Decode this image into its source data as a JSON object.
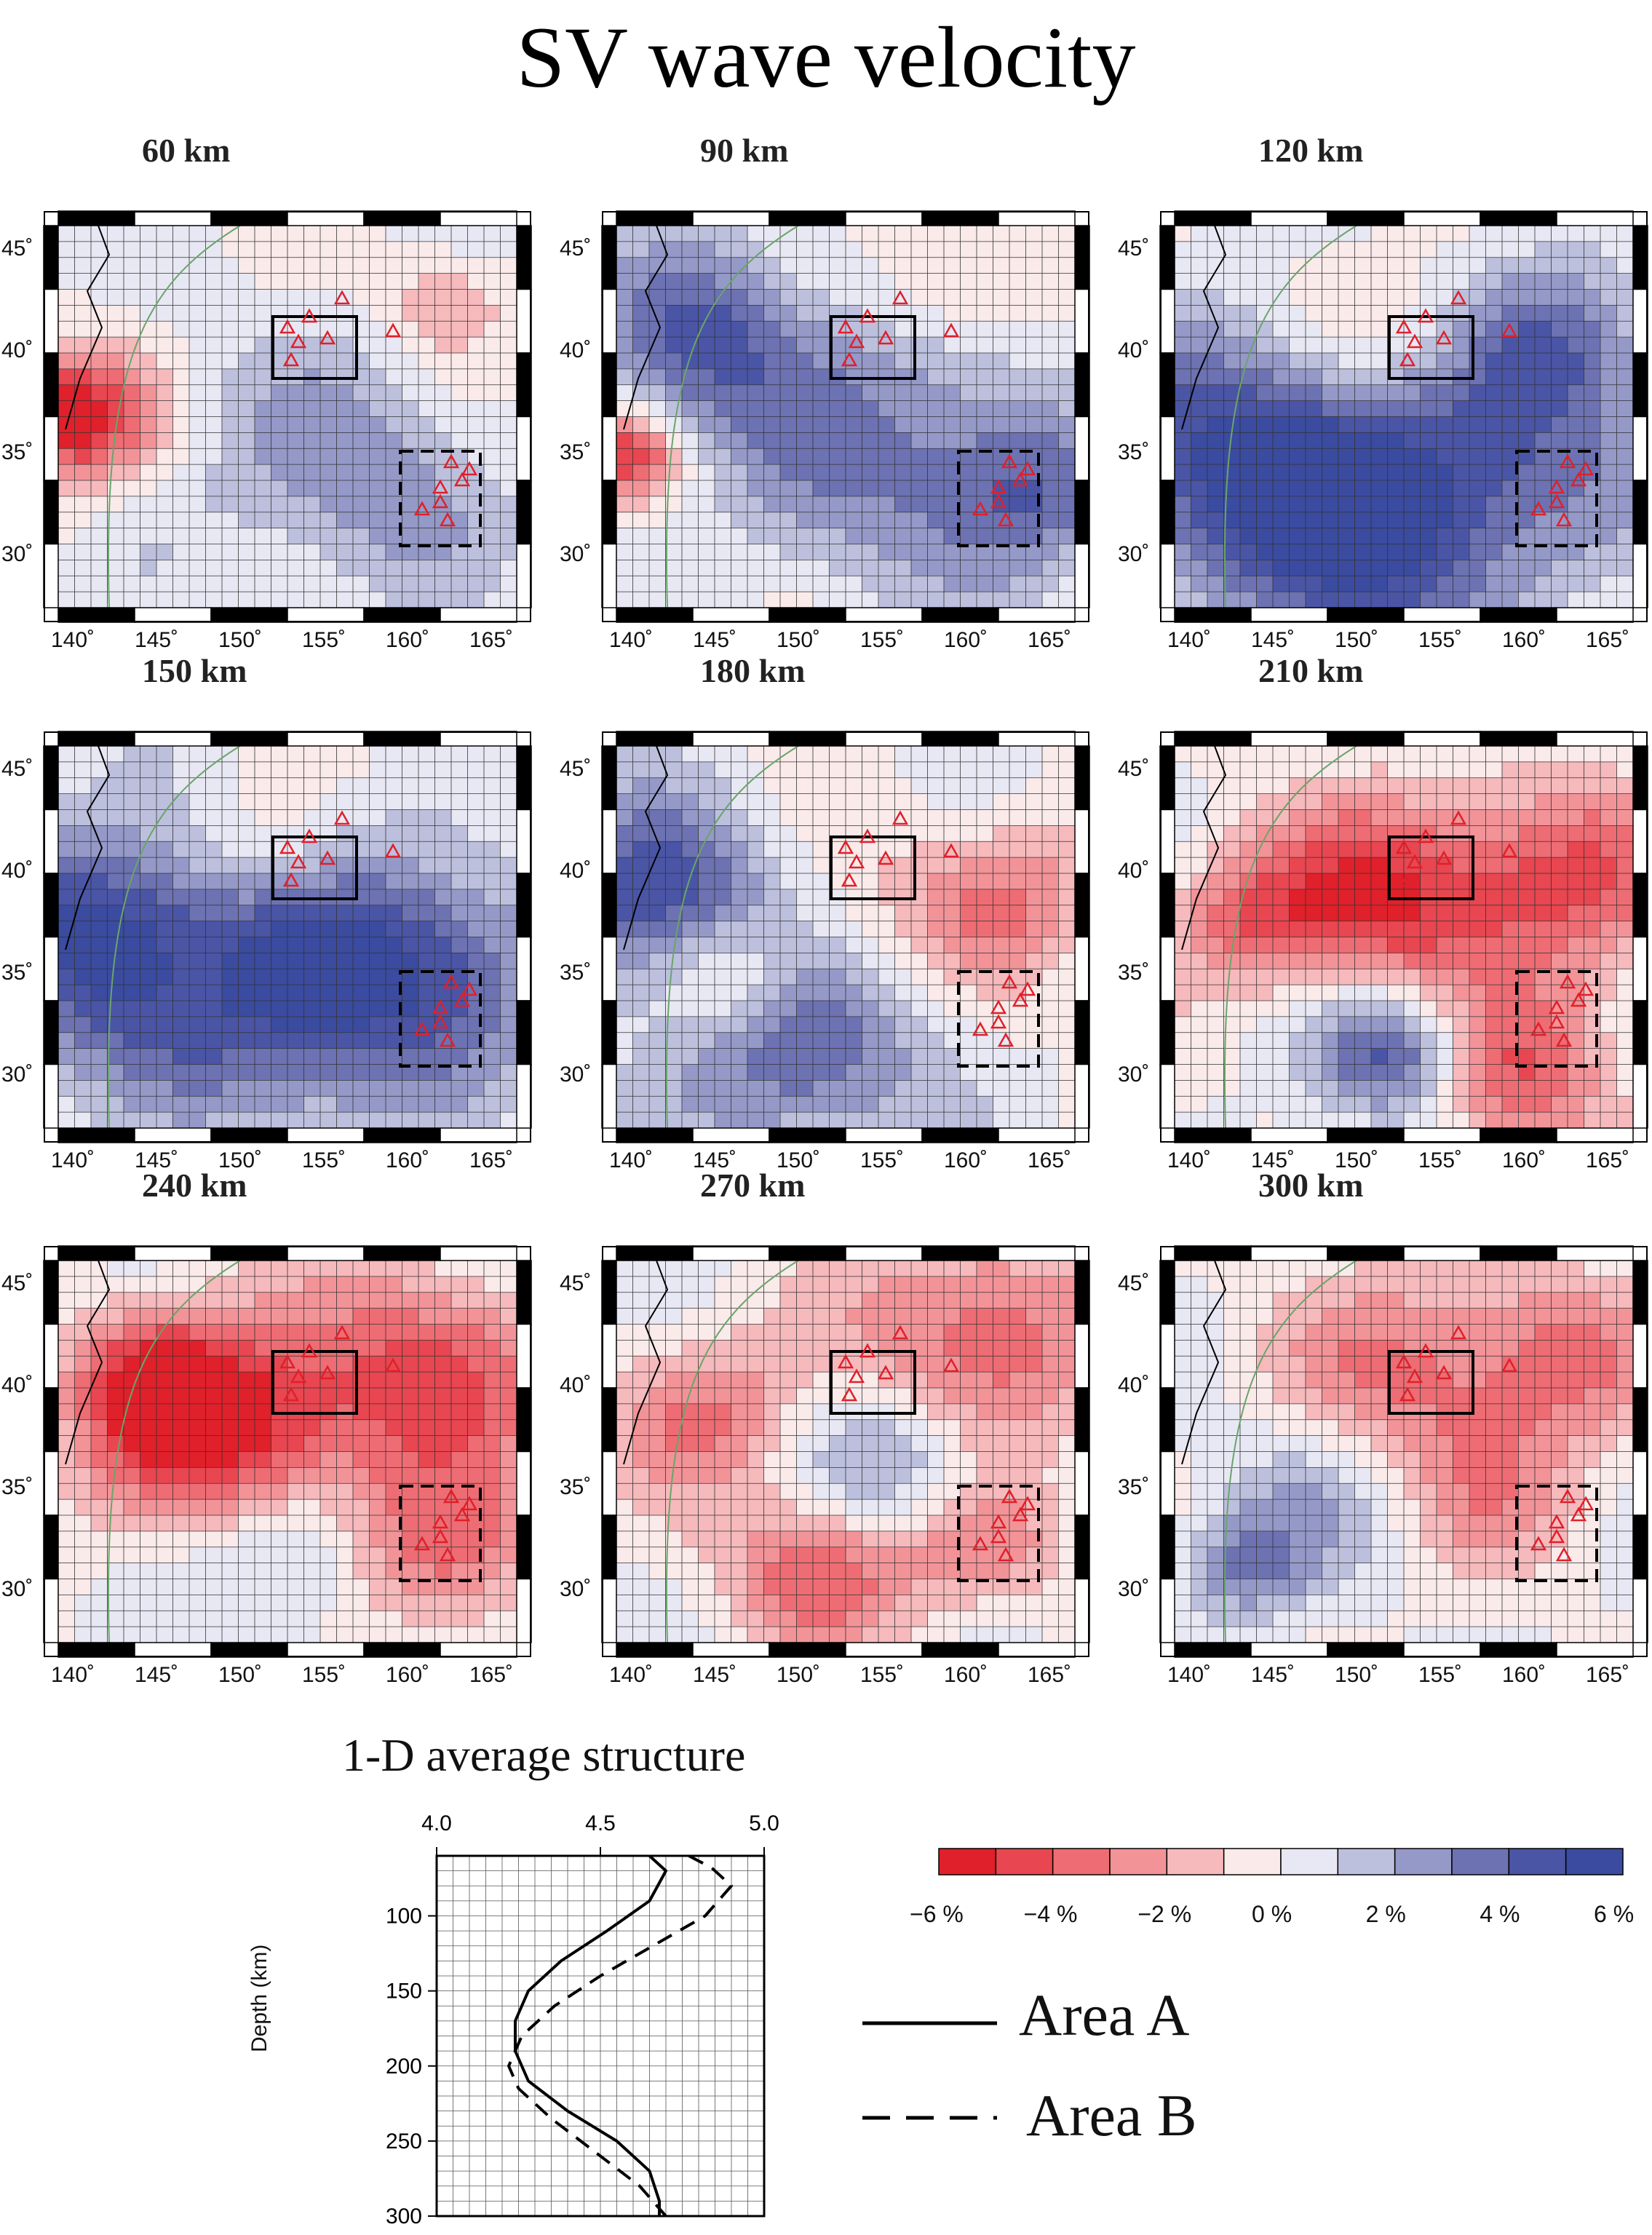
{
  "title": "SV wave velocity",
  "maps": {
    "lon_ticks": [
      "140˚",
      "145˚",
      "150˚",
      "155˚",
      "160˚",
      "165˚"
    ],
    "lat_ticks": [
      "45˚",
      "40˚",
      "35˚",
      "30˚"
    ],
    "panels": [
      {
        "label": "60 km"
      },
      {
        "label": "90 km"
      },
      {
        "label": "120 km"
      },
      {
        "label": "150 km"
      },
      {
        "label": "180 km"
      },
      {
        "label": "210 km"
      },
      {
        "label": "240 km"
      },
      {
        "label": "270 km"
      },
      {
        "label": "300 km"
      }
    ]
  },
  "colorbar": {
    "ticks": [
      "−6 %",
      "−4 %",
      "−2 %",
      "0 %",
      "2 %",
      "4 %",
      "6 %"
    ],
    "colors": [
      "#e0202a",
      "#e84650",
      "#ee6c73",
      "#f29398",
      "#f6b9bc",
      "#faeaea",
      "#e8e8f4",
      "#bcc0dd",
      "#9499c8",
      "#6c72b2",
      "#4a55a6",
      "#3a4ba0"
    ]
  },
  "chart_data": {
    "type": "line",
    "title": "1-D average structure",
    "xlabel": "",
    "ylabel": "Depth (km)",
    "xlim": [
      4.0,
      5.0
    ],
    "ylim": [
      300,
      60
    ],
    "x_ticks": [
      "4.0",
      "4.5",
      "5.0"
    ],
    "y_ticks": [
      "100",
      "150",
      "200",
      "250",
      "300"
    ],
    "series": [
      {
        "name": "Area A",
        "style": "solid",
        "points": [
          [
            4.65,
            60
          ],
          [
            4.7,
            70
          ],
          [
            4.65,
            90
          ],
          [
            4.52,
            110
          ],
          [
            4.38,
            130
          ],
          [
            4.28,
            150
          ],
          [
            4.24,
            170
          ],
          [
            4.24,
            190
          ],
          [
            4.28,
            210
          ],
          [
            4.4,
            230
          ],
          [
            4.55,
            250
          ],
          [
            4.65,
            270
          ],
          [
            4.68,
            290
          ],
          [
            4.68,
            300
          ]
        ]
      },
      {
        "name": "Area B",
        "style": "dashed",
        "points": [
          [
            4.77,
            60
          ],
          [
            4.84,
            68
          ],
          [
            4.9,
            80
          ],
          [
            4.82,
            100
          ],
          [
            4.66,
            120
          ],
          [
            4.5,
            140
          ],
          [
            4.36,
            160
          ],
          [
            4.26,
            180
          ],
          [
            4.22,
            200
          ],
          [
            4.25,
            215
          ],
          [
            4.35,
            235
          ],
          [
            4.5,
            260
          ],
          [
            4.62,
            280
          ],
          [
            4.7,
            300
          ]
        ]
      }
    ]
  }
}
